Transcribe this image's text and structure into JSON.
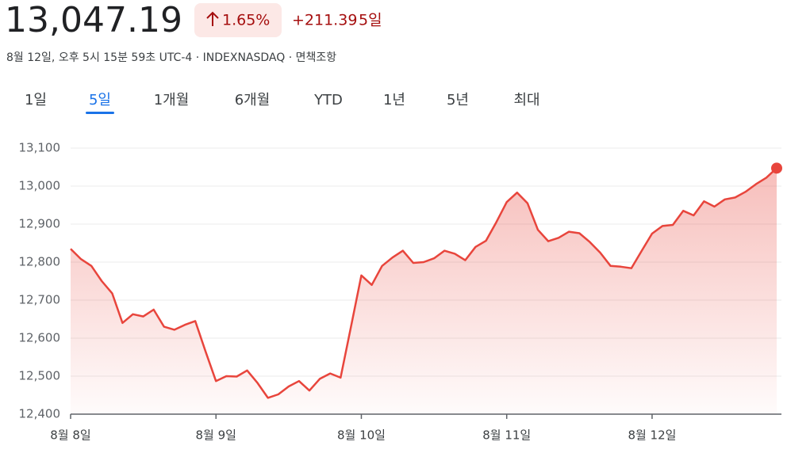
{
  "header": {
    "price": "13,047.19",
    "change_percent": "1.65%",
    "change_abs": "+211.39",
    "period": "5일",
    "meta": "8월 12일, 오후 5시 15분 59초 UTC-4 · INDEXNASDAQ · 면책조항"
  },
  "tabs": {
    "items": [
      "1일",
      "5일",
      "1개월",
      "6개월",
      "YTD",
      "1년",
      "5년",
      "최대"
    ],
    "selected": 1
  },
  "chart_data": {
    "type": "line",
    "categories": [
      "8월 8일",
      null,
      null,
      null,
      null,
      null,
      null,
      null,
      null,
      null,
      null,
      null,
      null,
      null,
      "8월 9일",
      null,
      null,
      null,
      null,
      null,
      null,
      null,
      null,
      null,
      null,
      null,
      null,
      null,
      "8월 10일",
      null,
      null,
      null,
      null,
      null,
      null,
      null,
      null,
      null,
      null,
      null,
      null,
      null,
      "8월 11일",
      null,
      null,
      null,
      null,
      null,
      null,
      null,
      null,
      null,
      null,
      null,
      null,
      null,
      "8월 12일",
      null,
      null,
      null,
      null,
      null,
      null,
      null,
      null,
      null,
      null,
      null,
      null
    ],
    "values": [
      12835,
      12808,
      12790,
      12750,
      12718,
      12640,
      12663,
      12657,
      12675,
      12630,
      12622,
      12635,
      12645,
      12565,
      12487,
      12500,
      12499,
      12515,
      12482,
      12443,
      12452,
      12473,
      12487,
      12462,
      12493,
      12507,
      12496,
      12630,
      12765,
      12740,
      12790,
      12812,
      12830,
      12798,
      12800,
      12810,
      12830,
      12822,
      12805,
      12840,
      12856,
      12905,
      12958,
      12983,
      12955,
      12885,
      12855,
      12864,
      12880,
      12876,
      12853,
      12825,
      12790,
      12788,
      12784,
      12830,
      12875,
      12895,
      12898,
      12935,
      12923,
      12960,
      12946,
      12965,
      12970,
      12985,
      13005,
      13022,
      13047.19
    ],
    "color": "#e8453c",
    "ylim": [
      12400,
      13100
    ],
    "yticks": [
      {
        "value": 12400,
        "label": "12,400"
      },
      {
        "value": 12500,
        "label": "12,500"
      },
      {
        "value": 12600,
        "label": "12,600"
      },
      {
        "value": 12700,
        "label": "12,700"
      },
      {
        "value": 12800,
        "label": "12,800"
      },
      {
        "value": 12900,
        "label": "12,900"
      },
      {
        "value": 13000,
        "label": "13,000"
      },
      {
        "value": 13100,
        "label": "13,100"
      }
    ],
    "grid": true
  }
}
